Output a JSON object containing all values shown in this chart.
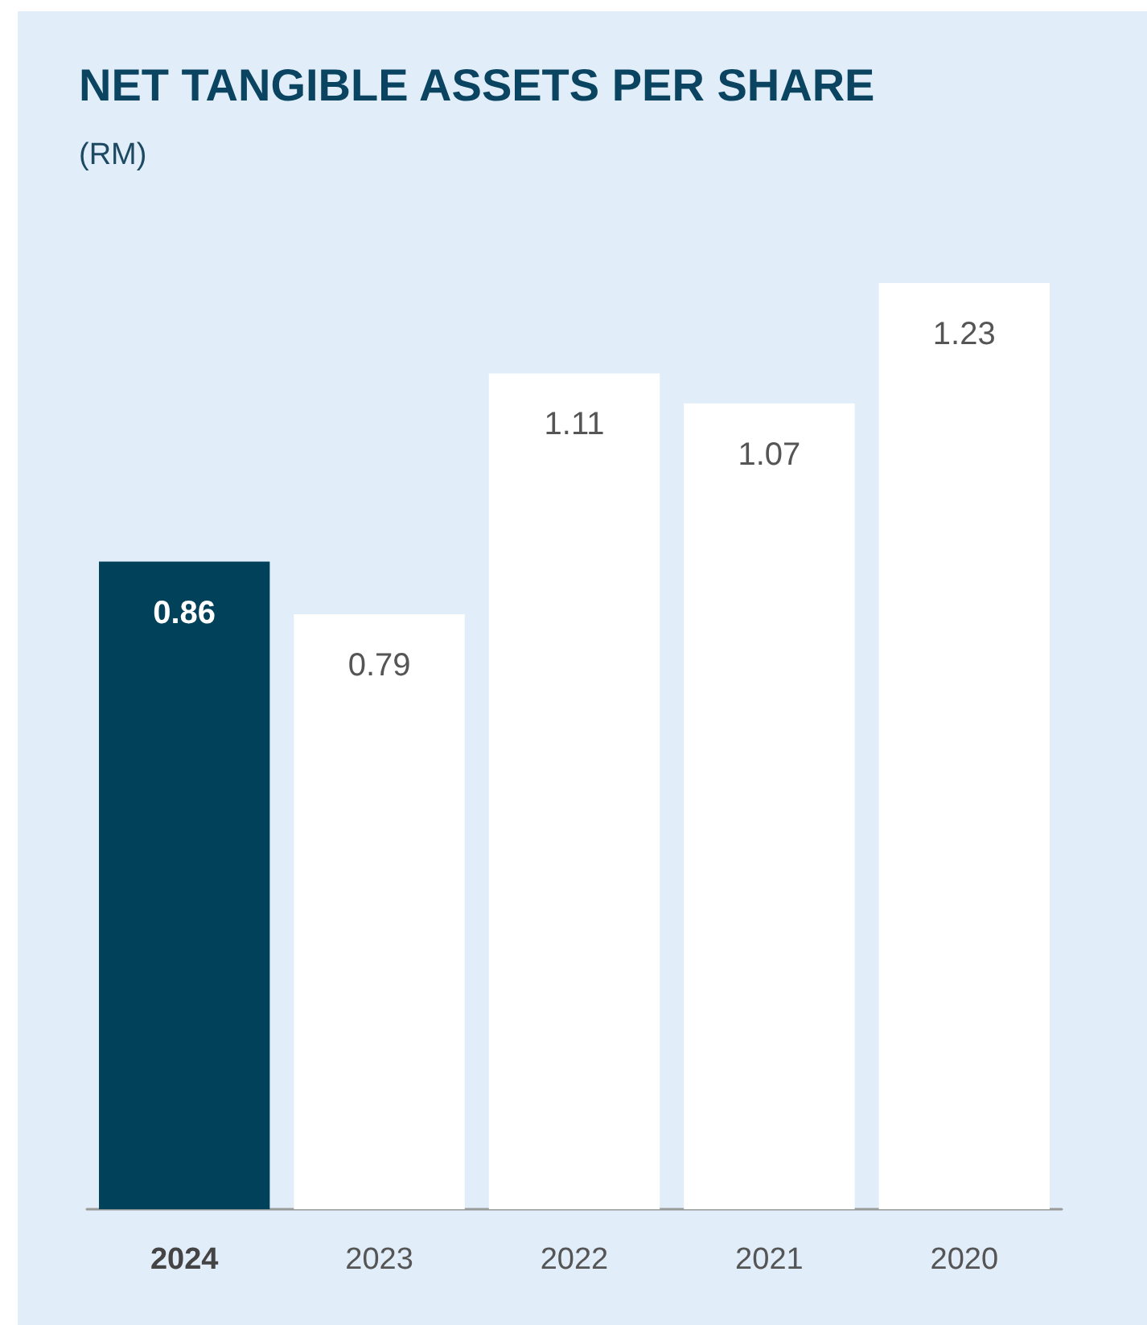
{
  "chart_data": {
    "type": "bar",
    "title": "NET TANGIBLE ASSETS PER SHARE",
    "subtitle": "(RM)",
    "categories": [
      "2024",
      "2023",
      "2022",
      "2021",
      "2020"
    ],
    "values": [
      0.86,
      0.79,
      1.11,
      1.07,
      1.23
    ],
    "colors": [
      "#02415a",
      "#ffffff",
      "#ffffff",
      "#ffffff",
      "#ffffff"
    ],
    "data_labels": true,
    "tick_labels": "x"
  }
}
